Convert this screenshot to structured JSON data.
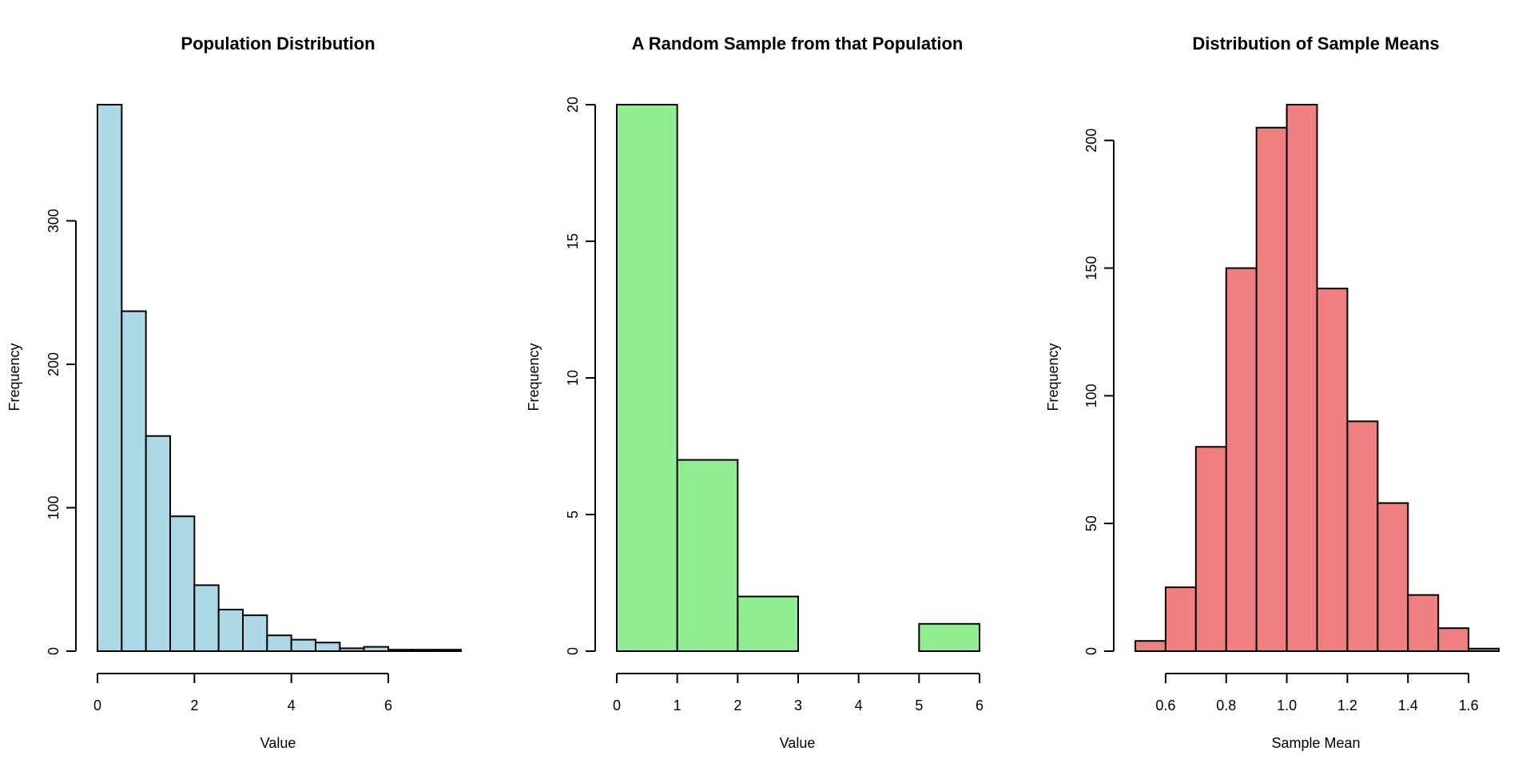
{
  "chart_data": [
    {
      "type": "bar",
      "title": "Population Distribution",
      "xlabel": "Value",
      "ylabel": "Frequency",
      "color": "#ADD8E6",
      "bin_edges": [
        0,
        0.5,
        1,
        1.5,
        2,
        2.5,
        3,
        3.5,
        4,
        4.5,
        5,
        5.5,
        6,
        6.5,
        7,
        7.5
      ],
      "values": [
        381,
        237,
        150,
        94,
        46,
        29,
        25,
        11,
        8,
        6,
        2,
        3,
        1,
        1,
        1
      ],
      "xlim": [
        0,
        7.5
      ],
      "ylim": [
        0,
        381
      ],
      "xticks": [
        0,
        2,
        4,
        6
      ],
      "xtick_labels": [
        "0",
        "2",
        "4",
        "6"
      ],
      "yticks": [
        0,
        100,
        200,
        300
      ],
      "ytick_labels": [
        "0",
        "100",
        "200",
        "300"
      ]
    },
    {
      "type": "bar",
      "title": "A Random Sample from that Population",
      "xlabel": "Value",
      "ylabel": "Frequency",
      "color": "#90EE90",
      "bin_edges": [
        0,
        1,
        2,
        3,
        4,
        5,
        6
      ],
      "values": [
        20,
        7,
        2,
        0,
        0,
        1
      ],
      "xlim": [
        0,
        6
      ],
      "ylim": [
        0,
        20
      ],
      "xticks": [
        0,
        1,
        2,
        3,
        4,
        5,
        6
      ],
      "xtick_labels": [
        "0",
        "1",
        "2",
        "3",
        "4",
        "5",
        "6"
      ],
      "yticks": [
        0,
        5,
        10,
        15,
        20
      ],
      "ytick_labels": [
        "0",
        "5",
        "10",
        "15",
        "20"
      ]
    },
    {
      "type": "bar",
      "title": "Distribution of Sample Means",
      "xlabel": "Sample Mean",
      "ylabel": "Frequency",
      "color": "#F08080",
      "bin_edges": [
        0.5,
        0.6,
        0.7,
        0.8,
        0.9,
        1.0,
        1.1,
        1.2,
        1.3,
        1.4,
        1.5,
        1.6,
        1.7
      ],
      "values": [
        4,
        25,
        80,
        150,
        205,
        214,
        142,
        90,
        58,
        22,
        9,
        1
      ],
      "xlim": [
        0.5,
        1.7
      ],
      "ylim": [
        0,
        214
      ],
      "xticks": [
        0.6,
        0.8,
        1.0,
        1.2,
        1.4,
        1.6
      ],
      "xtick_labels": [
        "0.6",
        "0.8",
        "1.0",
        "1.2",
        "1.4",
        "1.6"
      ],
      "yticks": [
        0,
        50,
        100,
        150,
        200
      ],
      "ytick_labels": [
        "0",
        "50",
        "100",
        "150",
        "200"
      ]
    }
  ]
}
